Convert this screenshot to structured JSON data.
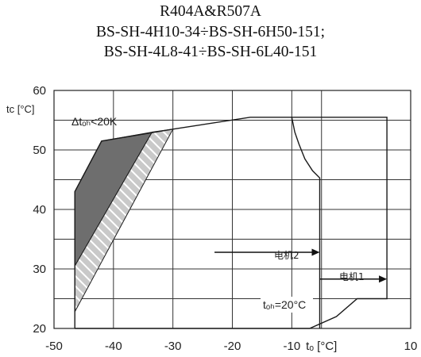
{
  "chart_data": {
    "type": "line",
    "title_lines": [
      "R404A&R507A",
      "BS-SH-4H10-34÷BS-SH-6H50-151;",
      "BS-SH-4L8-41÷BS-SH-6L40-151"
    ],
    "xlabel": "tₒ [°C]",
    "ylabel": "tᴄ [°C]",
    "xlim": [
      -50,
      10
    ],
    "ylim": [
      20,
      60
    ],
    "x_ticks": [
      "-50",
      "-40",
      "-30",
      "-20",
      "-10",
      "tₒ [°C]",
      "10"
    ],
    "x_tick_values": [
      -50,
      -40,
      -30,
      -20,
      -10,
      -5,
      10
    ],
    "y_ticks": [
      "20",
      "30",
      "40",
      "50",
      "60"
    ],
    "y_tick_values": [
      20,
      30,
      40,
      50,
      60
    ],
    "grid": true,
    "series": [
      {
        "role": "envelope",
        "x": [
          -46.5,
          -46.5,
          -42,
          -30,
          -17,
          6,
          6,
          1,
          -2.5,
          -7,
          -46.5
        ],
        "y": [
          20,
          43,
          51.5,
          53.5,
          55.5,
          55.5,
          25,
          25,
          22,
          20,
          20
        ]
      },
      {
        "role": "limit-curve",
        "x": [
          -10,
          -9.5,
          -8.8,
          -7.8,
          -6.5,
          -5.3,
          -5.3
        ],
        "y": [
          55.5,
          53,
          51,
          48.5,
          46.5,
          45.3,
          20
        ]
      }
    ],
    "regions": [
      {
        "style": "dark-shaded",
        "x": [
          -46.5,
          -46.5,
          -42,
          -33.5,
          -46.5
        ],
        "y": [
          30.5,
          43,
          51.5,
          53,
          30.5
        ]
      },
      {
        "style": "hatched",
        "x": [
          -46.5,
          -46.5,
          -33.5,
          -30,
          -46.5
        ],
        "y": [
          22.8,
          30.5,
          53,
          53.5,
          22.8
        ]
      }
    ],
    "annotations": {
      "delta_label": "Δtₒₕ<20K",
      "toh_label": "tₒₕ=20°C",
      "motor2_label": "电机2",
      "motor1_label": "电机1"
    },
    "arrows": [
      {
        "name": "motor2-arrow",
        "x": [
          -23,
          -5.3
        ],
        "y": 32.8
      },
      {
        "name": "motor1-arrow",
        "x": [
          -5.3,
          6
        ],
        "y": 28.3
      }
    ]
  }
}
